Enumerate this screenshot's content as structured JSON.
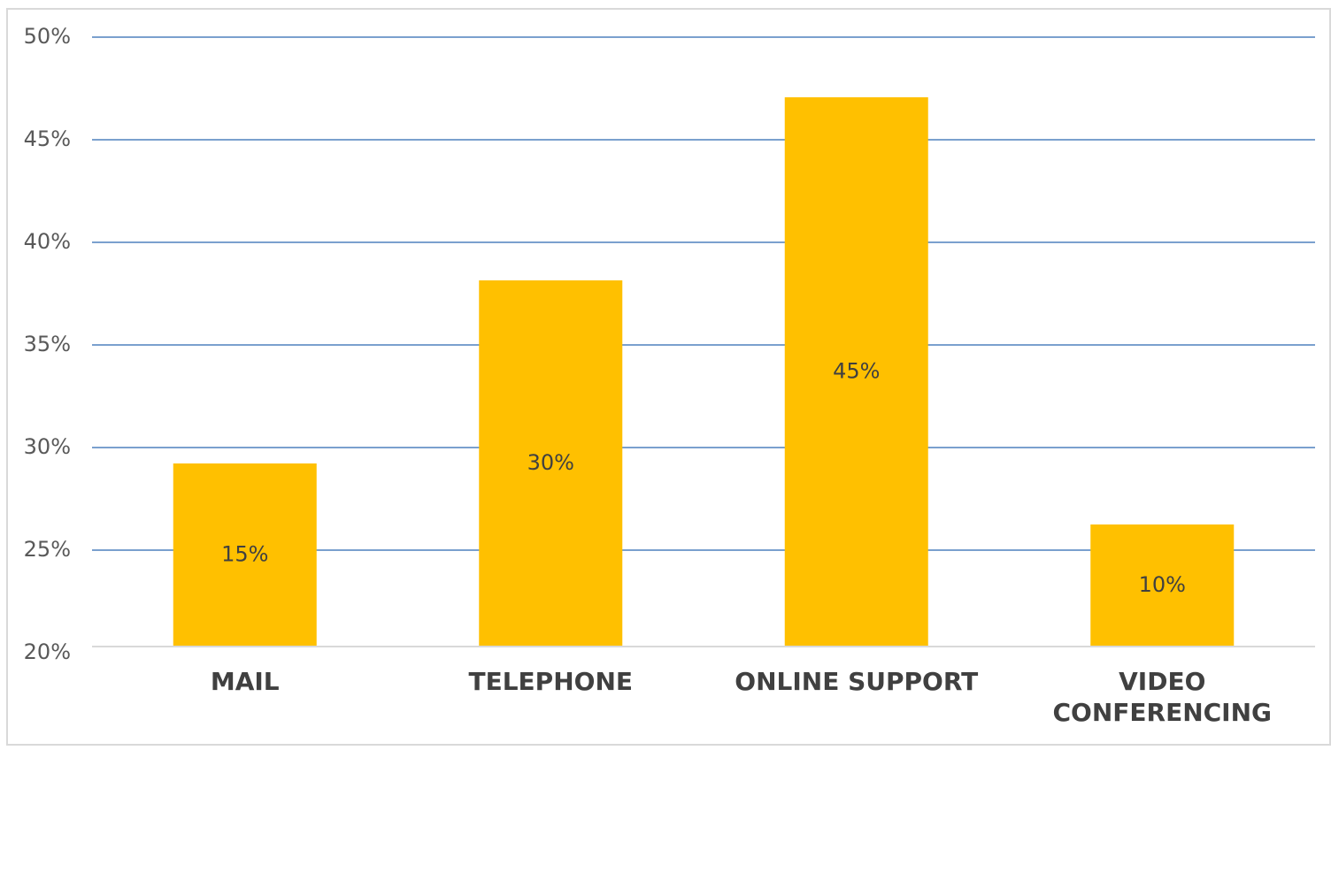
{
  "chart_data": {
    "type": "bar",
    "categories": [
      "MAIL",
      "TELEPHONE",
      "ONLINE  SUPPORT",
      "VIDEO CONFERENCING"
    ],
    "values": [
      15,
      30,
      45,
      10
    ],
    "value_labels": [
      "15%",
      "30%",
      "45%",
      "10%"
    ],
    "color": "#ffc000",
    "ylim": [
      0,
      50
    ],
    "y2lim": [
      20,
      50
    ],
    "y2ticks": [
      {
        "value": 20,
        "label": "20%"
      },
      {
        "value": 25,
        "label": "25%"
      },
      {
        "value": 30,
        "label": "30%"
      },
      {
        "value": 35,
        "label": "35%"
      },
      {
        "value": 40,
        "label": "40%"
      },
      {
        "value": 45,
        "label": "45%"
      },
      {
        "value": 50,
        "label": "50%"
      }
    ],
    "grid": true
  }
}
